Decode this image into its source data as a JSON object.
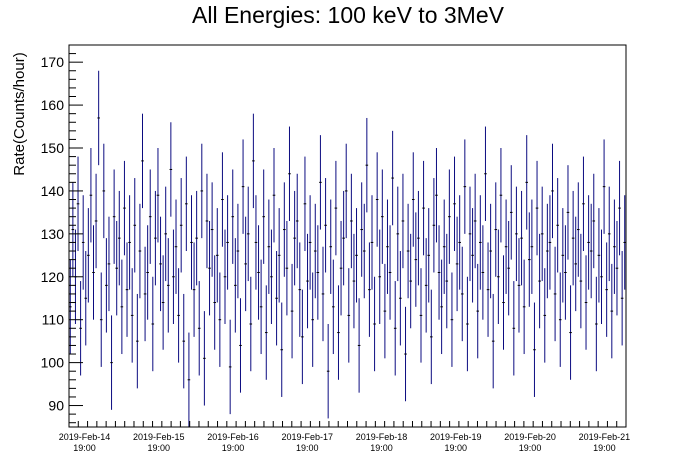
{
  "chart_data": {
    "type": "scatter",
    "title": "All Energies:  100 keV to 3MeV",
    "xlabel": "",
    "ylabel": "Rate(Counts/hour)",
    "x_start": "2019-Feb-14 14:00",
    "x_tick_labels": [
      {
        "date": "2019-Feb-14",
        "time": "19:00"
      },
      {
        "date": "2019-Feb-15",
        "time": "19:00"
      },
      {
        "date": "2019-Feb-16",
        "time": "19:00"
      },
      {
        "date": "2019-Feb-17",
        "time": "19:00"
      },
      {
        "date": "2019-Feb-18",
        "time": "19:00"
      },
      {
        "date": "2019-Feb-19",
        "time": "19:00"
      },
      {
        "date": "2019-Feb-20",
        "time": "19:00"
      },
      {
        "date": "2019-Feb-21",
        "time": "19:00"
      }
    ],
    "xlim": [
      "2019-Feb-14 14:00",
      "2019-Feb-22 02:00"
    ],
    "ylim": [
      85,
      174
    ],
    "y_ticks": [
      90,
      100,
      110,
      120,
      130,
      140,
      150,
      160,
      170
    ],
    "error_bars": true,
    "color": "#0b0b80",
    "values": [
      113,
      131,
      120,
      137,
      108,
      128,
      115,
      125,
      139,
      121,
      133,
      157,
      110,
      140,
      118,
      123,
      100,
      134,
      122,
      129,
      113,
      136,
      117,
      128,
      111,
      132,
      105,
      126,
      147,
      116,
      121,
      134,
      109,
      129,
      139,
      123,
      114,
      130,
      118,
      145,
      120,
      127,
      111,
      132,
      105,
      137,
      96,
      128,
      117,
      129,
      108,
      140,
      101,
      133,
      122,
      131,
      114,
      125,
      110,
      138,
      120,
      128,
      99,
      134,
      118,
      126,
      104,
      141,
      123,
      130,
      109,
      147,
      128,
      121,
      113,
      134,
      107,
      127,
      120,
      139,
      115,
      125,
      103,
      131,
      122,
      144,
      112,
      129,
      133,
      117,
      106,
      137,
      119,
      128,
      110,
      126,
      121,
      142,
      116,
      132,
      98,
      127,
      113,
      136,
      107,
      122,
      129,
      140,
      111,
      133,
      119,
      125,
      104,
      131,
      126,
      146,
      117,
      128,
      109,
      138,
      120,
      134,
      112,
      127,
      121,
      143,
      108,
      130,
      115,
      133,
      102,
      126,
      119,
      138,
      124,
      129,
      111,
      136,
      118,
      125,
      106,
      132,
      139,
      121,
      113,
      127,
      119,
      134,
      110,
      137,
      123,
      128,
      116,
      141,
      109,
      130,
      125,
      133,
      112,
      128,
      121,
      144,
      117,
      126,
      105,
      131,
      120,
      139,
      114,
      127,
      122,
      135,
      108,
      130,
      118,
      129,
      113,
      142,
      124,
      127,
      103,
      136,
      119,
      130,
      111,
      126,
      128,
      140,
      116,
      132,
      110,
      125,
      121,
      135,
      107,
      129,
      123,
      131,
      119,
      137,
      114,
      128,
      126,
      133,
      109,
      125,
      120,
      141,
      117,
      130,
      112,
      127,
      122,
      136,
      115,
      128
    ],
    "error": 11
  }
}
